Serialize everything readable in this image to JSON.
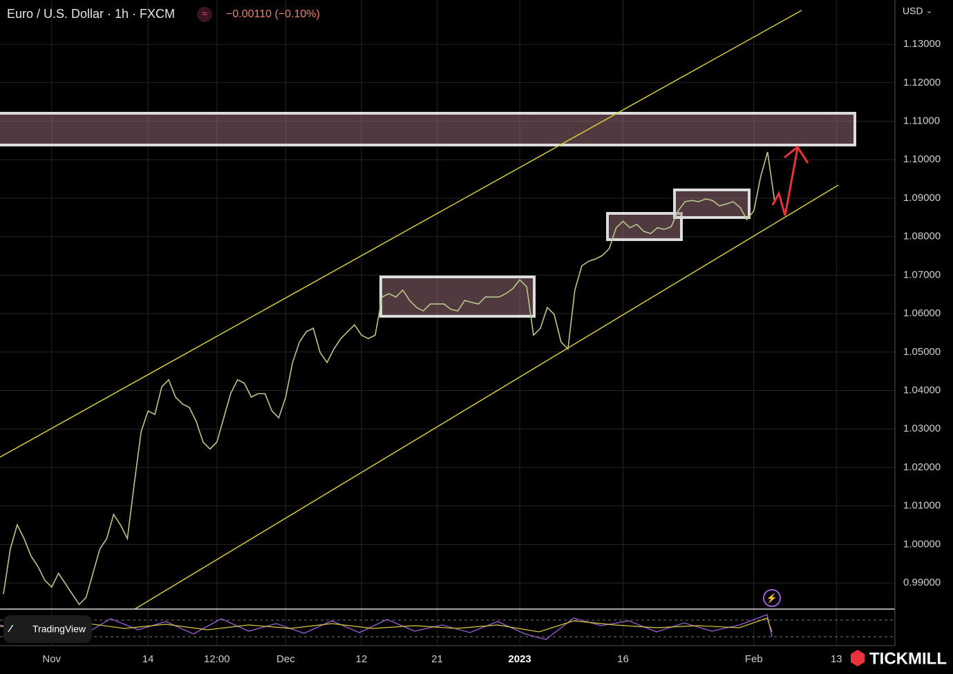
{
  "chart_data": {
    "type": "line",
    "title": "Euro / U.S. Dollar · 1h · FXCM",
    "change": "−0.00110 (−0.10%)",
    "currency": "USD",
    "watermark": "TradingView",
    "logo": "TICKMILL",
    "color": "#b8c98a",
    "grid": true,
    "categories": [
      null,
      null,
      null,
      null,
      null,
      null,
      null,
      "Nov",
      null,
      null,
      null,
      null,
      null,
      null,
      null,
      null,
      null,
      null,
      null,
      null,
      null,
      "14",
      null,
      null,
      null,
      null,
      null,
      null,
      null,
      null,
      null,
      "12:00",
      null,
      null,
      null,
      null,
      null,
      null,
      null,
      null,
      null,
      "Dec",
      null,
      null,
      null,
      null,
      null,
      null,
      null,
      null,
      null,
      null,
      "12",
      null,
      null,
      null,
      null,
      null,
      null,
      null,
      null,
      null,
      null,
      "21",
      null,
      null,
      null,
      null,
      null,
      null,
      null,
      null,
      null,
      null,
      null,
      "2023",
      null,
      null,
      null,
      null,
      null,
      null,
      null,
      null,
      null,
      null,
      null,
      null,
      null,
      null,
      "16",
      null,
      null,
      null,
      null,
      null,
      null,
      null,
      null,
      null,
      null,
      null,
      null,
      null,
      null,
      null,
      null,
      null,
      null,
      "Feb",
      null,
      null,
      null,
      null,
      null,
      null,
      null,
      null,
      null,
      null,
      null,
      "13",
      null,
      null,
      null,
      null,
      null,
      null,
      null,
      null
    ],
    "values": [
      0.9871,
      0.9988,
      1.0051,
      1.0015,
      0.997,
      0.9943,
      0.9907,
      0.9889,
      0.9925,
      0.9898,
      0.9871,
      0.9844,
      0.9862,
      0.9925,
      0.9988,
      1.0015,
      1.0078,
      1.0051,
      1.0015,
      1.0158,
      1.0293,
      1.0347,
      1.0338,
      1.041,
      1.0428,
      1.0383,
      1.0365,
      1.0356,
      1.032,
      1.0266,
      1.0248,
      1.0266,
      1.0329,
      1.0392,
      1.0428,
      1.0419,
      1.0383,
      1.0392,
      1.0392,
      1.0347,
      1.0329,
      1.0383,
      1.0473,
      1.0526,
      1.0553,
      1.0562,
      1.0499,
      1.0473,
      1.0508,
      1.0535,
      1.0553,
      1.0571,
      1.0544,
      1.0535,
      1.0544,
      1.0643,
      1.0652,
      1.0643,
      1.0661,
      1.0634,
      1.0616,
      1.0607,
      1.0625,
      1.0625,
      1.0625,
      1.0611,
      1.0607,
      1.0634,
      1.0629,
      1.0625,
      1.0643,
      1.0643,
      1.0643,
      1.0652,
      1.0665,
      1.0688,
      1.067,
      1.0544,
      1.0562,
      1.0616,
      1.0598,
      1.0526,
      1.0508,
      1.0661,
      1.0724,
      1.0736,
      1.0742,
      1.0751,
      1.0769,
      1.0823,
      1.084,
      1.0823,
      1.0832,
      1.0814,
      1.0808,
      1.0823,
      1.0819,
      1.0826,
      1.0867,
      1.0891,
      1.0894,
      1.0891,
      1.0898,
      1.0894,
      1.088,
      1.0885,
      1.0891,
      1.0876,
      1.0844,
      1.0867,
      1.0957,
      1.102,
      1.0894,
      null,
      null,
      null,
      null,
      null,
      null,
      null,
      null,
      null,
      null,
      null,
      null,
      null,
      null,
      null,
      null,
      null
    ],
    "ylim": [
      0.9832,
      1.1415
    ],
    "yticks": [
      {
        "value": 0.99,
        "label": "0.99000"
      },
      {
        "value": 1.0,
        "label": "1.00000"
      },
      {
        "value": 1.01,
        "label": "1.01000"
      },
      {
        "value": 1.02,
        "label": "1.02000"
      },
      {
        "value": 1.03,
        "label": "1.03000"
      },
      {
        "value": 1.04,
        "label": "1.04000"
      },
      {
        "value": 1.05,
        "label": "1.05000"
      },
      {
        "value": 1.06,
        "label": "1.06000"
      },
      {
        "value": 1.07,
        "label": "1.07000"
      },
      {
        "value": 1.08,
        "label": "1.08000"
      },
      {
        "value": 1.09,
        "label": "1.09000"
      },
      {
        "value": 1.1,
        "label": "1.10000"
      },
      {
        "value": 1.11,
        "label": "1.11000"
      },
      {
        "value": 1.12,
        "label": "1.12000"
      },
      {
        "value": 1.13,
        "label": "1.13000"
      }
    ]
  }
}
